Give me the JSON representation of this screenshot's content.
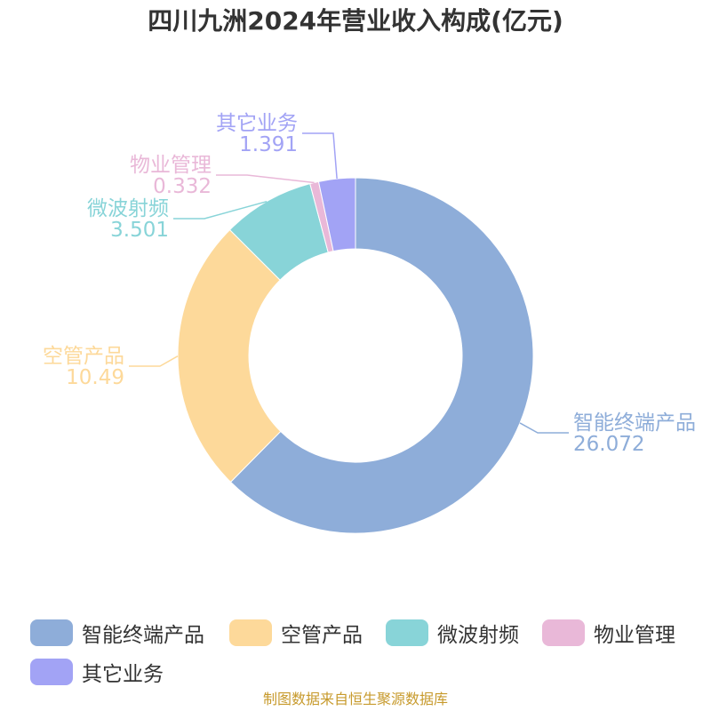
{
  "chart_data": {
    "type": "pie",
    "title": "四川九洲2024年营业收入构成(亿元)",
    "categories": [
      "智能终端产品",
      "空管产品",
      "微波射频",
      "物业管理",
      "其它业务"
    ],
    "values": [
      26.072,
      10.49,
      3.501,
      0.332,
      1.391
    ],
    "value_labels": [
      "26.072",
      "10.49",
      "3.501",
      "0.332",
      "1.391"
    ],
    "colors": [
      "#8eadd9",
      "#fdd99a",
      "#88d4d8",
      "#e9b8d8",
      "#a2a3f5"
    ],
    "donut": true,
    "legend_position": "bottom"
  },
  "footer_source": "制图数据来自恒生聚源数据库"
}
